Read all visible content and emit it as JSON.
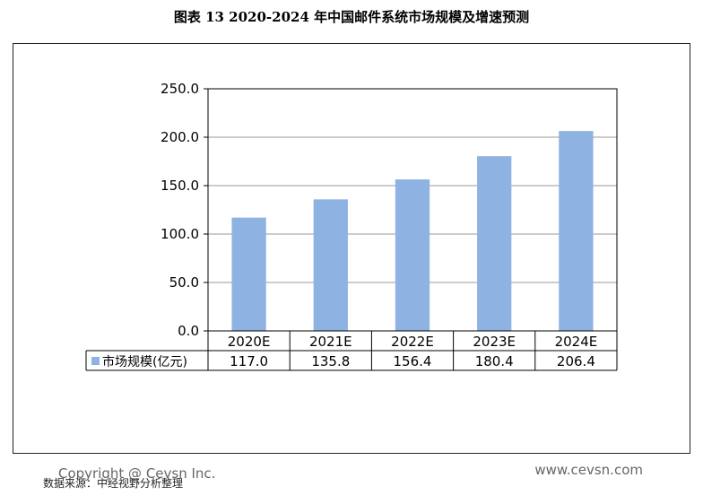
{
  "figure": {
    "title": "图表 13  2020-2024 年中国邮件系统市场规模及增速预测",
    "copyright": "Copyright @ Cevsn Inc.",
    "website": "www.cevsn.com",
    "source": "数据来源：中经视野分析整理"
  },
  "chart_data": {
    "type": "bar",
    "categories": [
      "2020E",
      "2021E",
      "2022E",
      "2023E",
      "2024E"
    ],
    "series": [
      {
        "name": "市场规模(亿元)",
        "values": [
          117.0,
          135.8,
          156.4,
          180.4,
          206.4
        ],
        "value_labels": [
          "117.0",
          "135.8",
          "156.4",
          "180.4",
          "206.4"
        ],
        "color": "#8EB3E2"
      }
    ],
    "ylim": [
      0,
      250
    ],
    "yticks": [
      0,
      50,
      100,
      150,
      200,
      250
    ],
    "ytick_labels": [
      "0.0",
      "50.0",
      "100.0",
      "150.0",
      "200.0",
      "250.0"
    ],
    "grid": true,
    "legend": "data-table-below",
    "xlabel": "",
    "ylabel": ""
  }
}
